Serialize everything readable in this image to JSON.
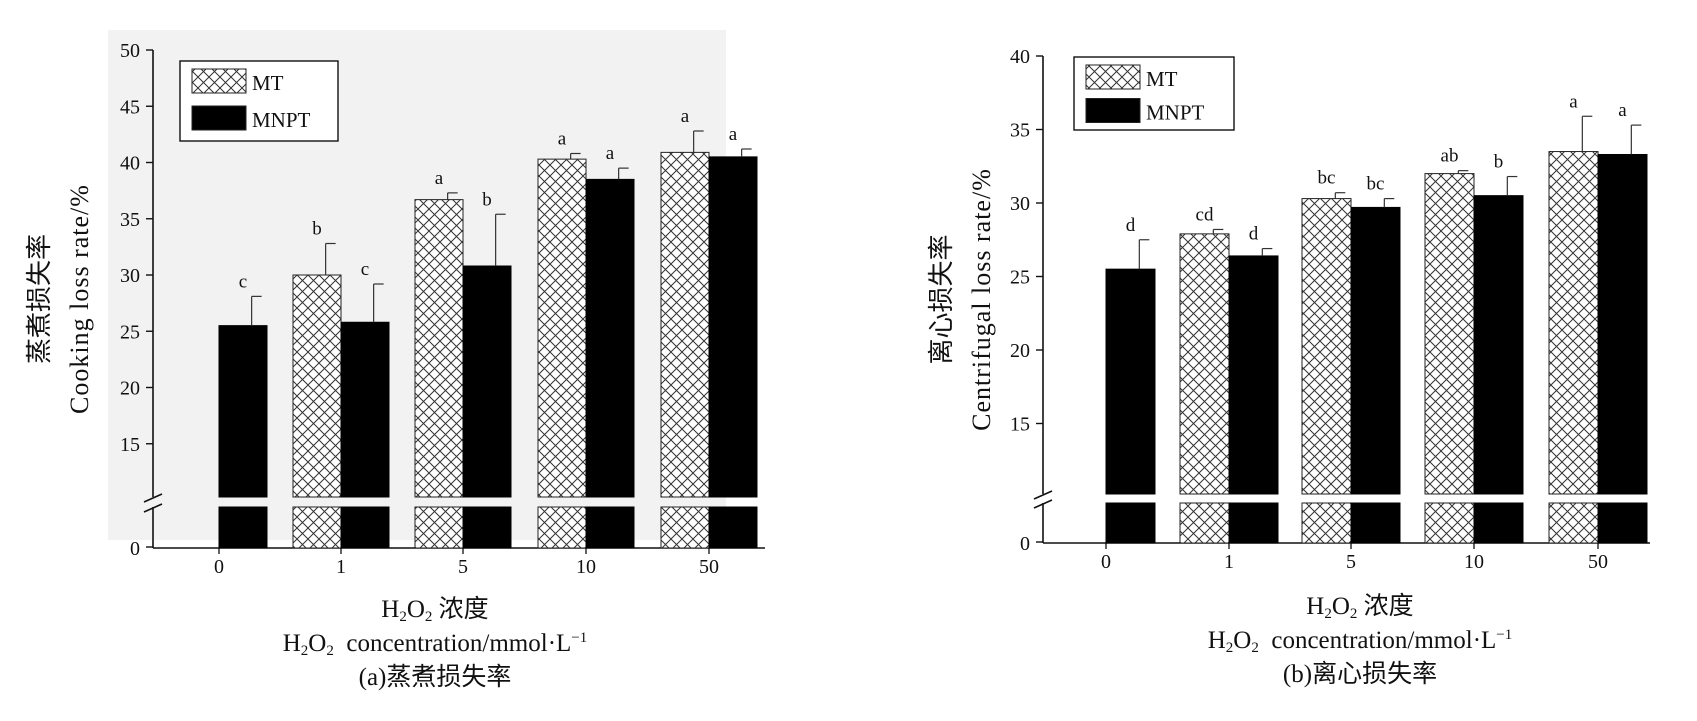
{
  "chart_data": [
    {
      "id": "panel-a",
      "type": "bar",
      "ylabel_cn": "蒸煮损失率",
      "ylabel_en": "Cooking loss rate/%",
      "xlabel_cn": "浓度",
      "xlabel_en": "concentration/mmol·L",
      "caption": "(a)蒸煮损失率",
      "categories": [
        "0",
        "1",
        "5",
        "10",
        "50"
      ],
      "yticks": [
        "15",
        "20",
        "25",
        "30",
        "35",
        "40",
        "45",
        "50"
      ],
      "ylim": [
        10,
        50
      ],
      "axis_break": true,
      "break_ticks": [
        "0"
      ],
      "series": [
        {
          "name": "MT",
          "pattern": "crosshatch",
          "values": [
            null,
            30.0,
            36.7,
            40.3,
            40.9
          ],
          "errors": [
            null,
            2.8,
            0.6,
            0.5,
            1.9
          ],
          "letters": [
            "",
            "b",
            "a",
            "a",
            "a"
          ]
        },
        {
          "name": "MNPT",
          "pattern": "solid",
          "values": [
            25.5,
            25.8,
            30.8,
            38.5,
            40.5
          ],
          "errors": [
            2.6,
            3.4,
            4.6,
            1.0,
            0.7
          ],
          "letters": [
            "c",
            "c",
            "b",
            "a",
            "a"
          ]
        }
      ],
      "legend_position": "top-left"
    },
    {
      "id": "panel-b",
      "type": "bar",
      "ylabel_cn": "离心损失率",
      "ylabel_en": "Centrifugal loss rate/%",
      "xlabel_cn": "浓度",
      "xlabel_en": "concentration/mmol·L",
      "caption": "(b)离心损失率",
      "categories": [
        "0",
        "1",
        "5",
        "10",
        "50"
      ],
      "yticks": [
        "15",
        "20",
        "25",
        "30",
        "35",
        "40"
      ],
      "ylim": [
        10,
        40
      ],
      "axis_break": true,
      "break_ticks": [
        "0"
      ],
      "series": [
        {
          "name": "MT",
          "pattern": "crosshatch",
          "values": [
            null,
            27.9,
            30.3,
            32.0,
            33.5
          ],
          "errors": [
            null,
            0.3,
            0.4,
            0.2,
            2.4
          ],
          "letters": [
            "",
            "cd",
            "bc",
            "ab",
            "a"
          ]
        },
        {
          "name": "MNPT",
          "pattern": "solid",
          "values": [
            25.5,
            26.4,
            29.7,
            30.5,
            33.3
          ],
          "errors": [
            2.0,
            0.5,
            0.6,
            1.3,
            2.0
          ],
          "letters": [
            "d",
            "d",
            "bc",
            "b",
            "a"
          ]
        }
      ],
      "legend_position": "top-left"
    }
  ]
}
